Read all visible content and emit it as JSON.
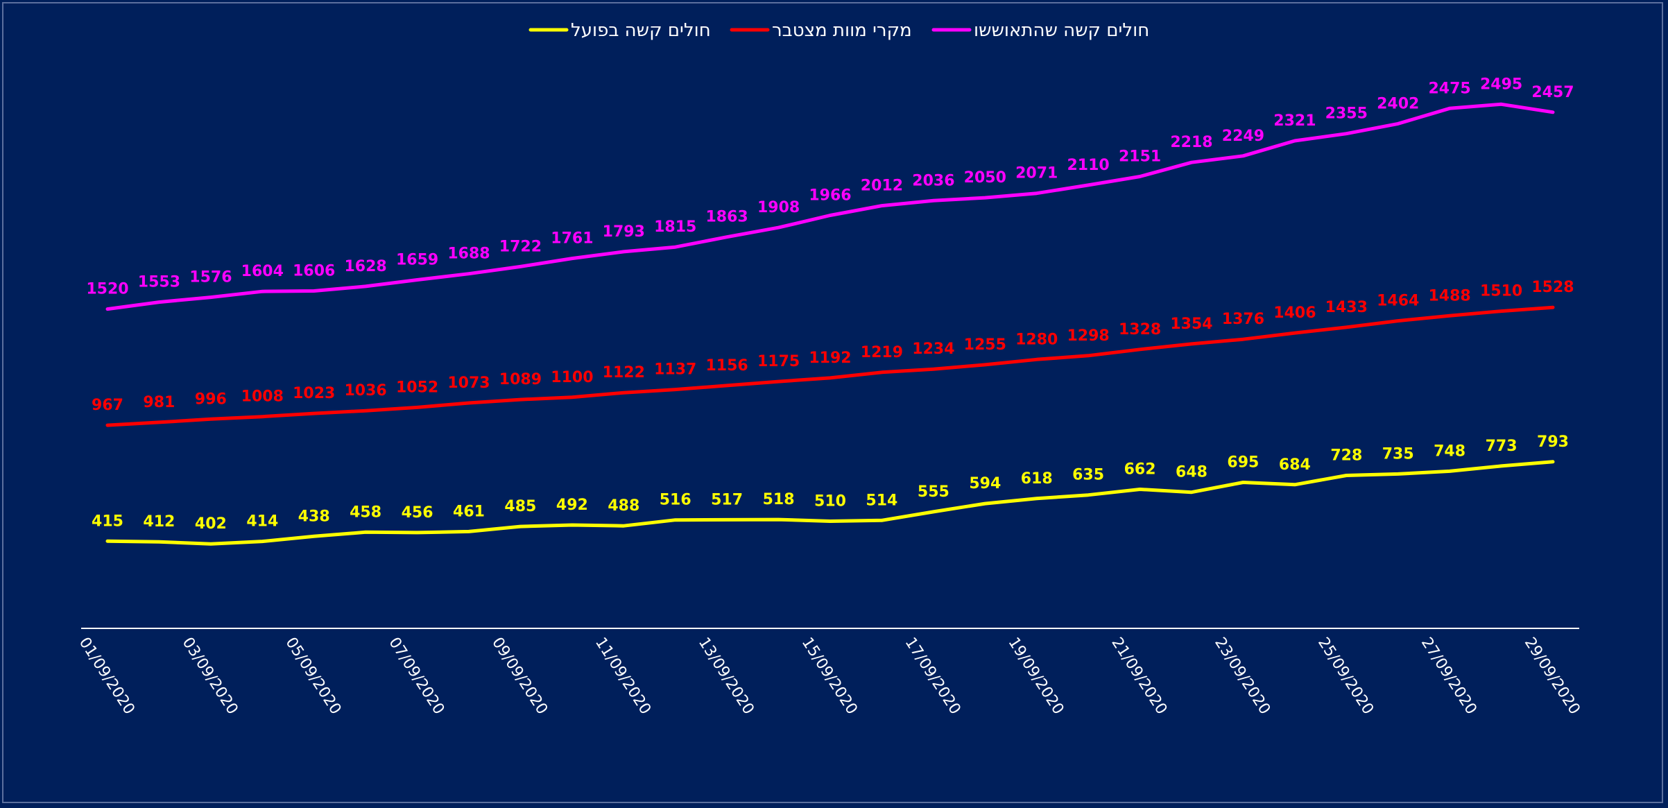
{
  "chart_data": {
    "type": "line",
    "title": "",
    "xlabel": "",
    "ylabel": "",
    "ylim": [
      0,
      2900
    ],
    "grid": false,
    "legend_position": "top-center",
    "x": [
      "01/09/2020",
      "02/09/2020",
      "03/09/2020",
      "04/09/2020",
      "05/09/2020",
      "06/09/2020",
      "07/09/2020",
      "08/09/2020",
      "09/09/2020",
      "10/09/2020",
      "11/09/2020",
      "12/09/2020",
      "13/09/2020",
      "14/09/2020",
      "15/09/2020",
      "16/09/2020",
      "17/09/2020",
      "18/09/2020",
      "19/09/2020",
      "20/09/2020",
      "21/09/2020",
      "22/09/2020",
      "23/09/2020",
      "24/09/2020",
      "25/09/2020",
      "26/09/2020",
      "27/09/2020",
      "28/09/2020",
      "29/09/2020"
    ],
    "x_tick_labels": [
      "01/09/2020",
      "03/09/2020",
      "05/09/2020",
      "07/09/2020",
      "09/09/2020",
      "11/09/2020",
      "13/09/2020",
      "15/09/2020",
      "17/09/2020",
      "19/09/2020",
      "21/09/2020",
      "23/09/2020",
      "25/09/2020",
      "27/09/2020",
      "29/09/2020"
    ],
    "series": [
      {
        "name": "חולים קשה שהתאוששו",
        "color": "#ff00ff",
        "values": [
          1520,
          1553,
          1576,
          1604,
          1606,
          1628,
          1659,
          1688,
          1722,
          1761,
          1793,
          1815,
          1863,
          1908,
          1966,
          2012,
          2036,
          2050,
          2071,
          2110,
          2151,
          2218,
          2249,
          2321,
          2355,
          2402,
          2475,
          2495,
          2457
        ]
      },
      {
        "name": "מקרי מוות מצטבר",
        "color": "#ff0000",
        "values": [
          967,
          981,
          996,
          1008,
          1023,
          1036,
          1052,
          1073,
          1089,
          1100,
          1122,
          1137,
          1156,
          1175,
          1192,
          1219,
          1234,
          1255,
          1280,
          1298,
          1328,
          1354,
          1376,
          1406,
          1433,
          1464,
          1488,
          1510,
          1528
        ]
      },
      {
        "name": "חולים קשה בפועל",
        "color": "#ffff00",
        "values": [
          415,
          412,
          402,
          414,
          438,
          458,
          456,
          461,
          485,
          492,
          488,
          516,
          517,
          518,
          510,
          514,
          555,
          594,
          618,
          635,
          662,
          648,
          695,
          684,
          728,
          735,
          748,
          773,
          793
        ]
      }
    ]
  }
}
